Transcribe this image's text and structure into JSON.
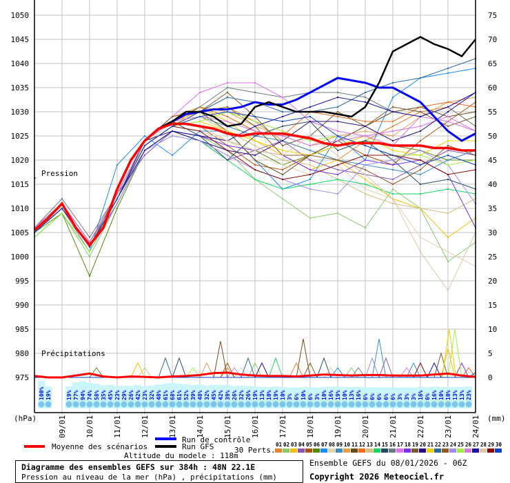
{
  "chart_data": {
    "type": "line",
    "title": "Diagramme des ensembles GEFS sur 384h : 48N 22.1E",
    "subtitle": "Pression au niveau de la mer (hPa) , précipitations (mm)",
    "run_info": "Ensemble GEFS du 08/01/2026 - 06Z",
    "copyright": "Copyright 2026 Meteociel.fr",
    "altitude": "Altitude du modele : 118m",
    "ylabel_left": "(hPa)",
    "ylabel_right": "(mm)",
    "pressure_label": "Pression",
    "precip_label": "Précipitations",
    "ylim_pressure": [
      975,
      1050
    ],
    "ylim_precip": [
      0,
      75
    ],
    "left_ticks": [
      "1050",
      "1045",
      "1040",
      "1035",
      "1030",
      "1025",
      "1020",
      "1015",
      "1010",
      "1005",
      "1000",
      "995",
      "990",
      "985",
      "980",
      "975"
    ],
    "right_ticks": [
      "75",
      "70",
      "65",
      "60",
      "55",
      "50",
      "45",
      "40",
      "35",
      "30",
      "25",
      "20",
      "15",
      "10",
      "5",
      "0"
    ],
    "x_range_hours": [
      0,
      384
    ],
    "date_labels": [
      "09/01",
      "10/01",
      "11/01",
      "12/01",
      "13/01",
      "14/01",
      "15/01",
      "16/01",
      "17/01",
      "18/01",
      "19/01",
      "20/01",
      "21/01",
      "22/01",
      "23/01",
      "24/01"
    ],
    "legend": {
      "mean": {
        "label": "Moyenne des scénarios",
        "color": "#ff0000"
      },
      "control": {
        "label": "Run de contrôle",
        "color": "#0000ff"
      },
      "gfs": {
        "label": "Run GFS",
        "color": "#000000"
      },
      "perts_label": "30 Perts."
    },
    "mean_12h": [
      1005.5,
      1008,
      1011,
      1006,
      1002.4,
      1006,
      1014,
      1020,
      1024,
      1026.5,
      1027.5,
      1027.5,
      1027,
      1026.5,
      1025.5,
      1025,
      1025.5,
      1025.5,
      1025.5,
      1025,
      1024.5,
      1023.5,
      1023,
      1023.5,
      1023.5,
      1023.5,
      1023,
      1023,
      1023,
      1022.5,
      1022.5,
      1022,
      1022
    ],
    "control_12h": [
      1005.5,
      1008,
      1011,
      1006,
      1002.4,
      1006,
      1014,
      1020,
      1024,
      1026.5,
      1028,
      1029.5,
      1030,
      1030.5,
      1030.5,
      1031,
      1032,
      1031.5,
      1031.5,
      1032.5,
      1034,
      1035.5,
      1037,
      1036.5,
      1036,
      1035,
      1035,
      1033.5,
      1032,
      1029,
      1026,
      1024,
      1025.5
    ],
    "gfs_12h": [
      1005.5,
      1008,
      1011,
      1006,
      1002.4,
      1006,
      1014,
      1020,
      1024,
      1026.5,
      1028,
      1030,
      1030,
      1029,
      1027,
      1027.5,
      1031,
      1032,
      1031,
      1030,
      1030,
      1030,
      1029.5,
      1029,
      1031,
      1036,
      1042.5,
      1044,
      1045.5,
      1044,
      1043,
      1041.5,
      1045
    ],
    "mean_precip_12h": [
      0.3,
      0,
      0,
      0.4,
      0.8,
      0.2,
      0,
      0.2,
      0.1,
      0,
      0.2,
      0.3,
      0.5,
      0.9,
      1.0,
      0.6,
      0.4,
      0.3,
      0.3,
      0.2,
      0.4,
      0.6,
      0.5,
      0.4,
      0.5,
      0.5,
      0.4,
      0.4,
      0.4,
      0.6,
      0.8,
      0.4,
      0.1
    ],
    "members": [
      {
        "id": "01",
        "color": "#e8812f",
        "p": [
          1005,
          1010,
          1002,
          1013,
          1024,
          1028,
          1030,
          1031,
          1028,
          1024,
          1022,
          1020,
          1024,
          1027,
          1030,
          1031,
          1027
        ],
        "rain": [
          [
            168,
            2
          ],
          [
            228,
            3
          ]
        ]
      },
      {
        "id": "02",
        "color": "#8bc96c",
        "p": [
          1004,
          1009,
          1000,
          1011,
          1022,
          1026,
          1025,
          1022,
          1016,
          1012,
          1008,
          1009,
          1006,
          1014,
          1010,
          999,
          1003
        ],
        "rain": [
          [
            192,
            3
          ],
          [
            276,
            2
          ]
        ]
      },
      {
        "id": "03",
        "color": "#f0c000",
        "p": [
          1005,
          1010,
          1001,
          1012,
          1023,
          1027,
          1031,
          1028,
          1024,
          1021,
          1018,
          1020,
          1016,
          1012,
          1010,
          1004,
          1008
        ],
        "rain": [
          [
            90,
            3
          ],
          [
            360,
            6
          ]
        ]
      },
      {
        "id": "04",
        "color": "#8c55b0",
        "p": [
          1006,
          1011,
          1003,
          1013,
          1021,
          1026,
          1024,
          1020,
          1022,
          1024,
          1020,
          1018,
          1017,
          1016,
          1019,
          1022,
          1021
        ],
        "rain": [
          [
            306,
            4
          ]
        ]
      },
      {
        "id": "05",
        "color": "#b0520e",
        "p": [
          1005,
          1010,
          1002,
          1013,
          1024,
          1028,
          1027,
          1023,
          1019,
          1018,
          1021,
          1024,
          1021,
          1019,
          1024,
          1028,
          1032
        ],
        "rain": [
          [
            168,
            3
          ]
        ]
      },
      {
        "id": "06",
        "color": "#5a8a0a",
        "p": [
          1005,
          1009,
          996,
          1010,
          1022,
          1026,
          1025,
          1024,
          1022,
          1019,
          1021,
          1023,
          1024,
          1023,
          1022,
          1020,
          1020
        ],
        "rain": [
          [
            54,
            2
          ]
        ]
      },
      {
        "id": "07",
        "color": "#1a8cff",
        "p": [
          1004,
          1009,
          1001,
          1019,
          1025,
          1021,
          1026,
          1026,
          1020,
          1014,
          1016,
          1025,
          1020,
          1033,
          1037,
          1038,
          1039
        ],
        "rain": [
          [
            264,
            2
          ]
        ]
      },
      {
        "id": "08",
        "color": "#e0d3b0",
        "p": [
          1005,
          1010,
          1002,
          1012,
          1023,
          1028,
          1027,
          1024,
          1021,
          1019,
          1017,
          1019,
          1014,
          1012,
          1004,
          1001,
          998
        ],
        "rain": [
          [
            180,
            2
          ]
        ]
      },
      {
        "id": "09",
        "color": "#3a8ec0",
        "p": [
          1005,
          1011,
          1003,
          1012,
          1023,
          1027,
          1029,
          1027,
          1025,
          1024,
          1022,
          1020,
          1019,
          1018,
          1017,
          1020,
          1022
        ],
        "rain": [
          [
            300,
            8
          ],
          [
            330,
            3
          ]
        ]
      },
      {
        "id": "10",
        "color": "#e8a050",
        "p": [
          1006,
          1011,
          1003,
          1013,
          1024,
          1029,
          1031,
          1030,
          1027,
          1025,
          1023,
          1025,
          1026,
          1025,
          1029,
          1032,
          1033
        ],
        "rain": [
          [
            150,
            3
          ]
        ]
      },
      {
        "id": "11",
        "color": "#6a4e1a",
        "p": [
          1005,
          1010,
          1002,
          1012,
          1023,
          1027,
          1030,
          1026,
          1020,
          1017,
          1021,
          1024,
          1027,
          1030,
          1031,
          1029,
          1030
        ],
        "rain": [
          [
            162,
            7.5
          ],
          [
            234,
            8
          ]
        ]
      },
      {
        "id": "12",
        "color": "#f26a1a",
        "p": [
          1005,
          1010,
          1002,
          1012,
          1024,
          1028,
          1031,
          1029,
          1026,
          1025,
          1030,
          1029,
          1028,
          1028,
          1031,
          1032,
          1031
        ],
        "rain": [
          [
            378,
            2
          ]
        ]
      },
      {
        "id": "13",
        "color": "#d4c080",
        "p": [
          1005,
          1010,
          1002,
          1012,
          1023,
          1027,
          1029,
          1026,
          1023,
          1020,
          1019,
          1016,
          1013,
          1011,
          1010,
          1009,
          1012
        ],
        "rain": [
          [
            96,
            2
          ]
        ]
      },
      {
        "id": "14",
        "color": "#10d860",
        "p": [
          1004,
          1009,
          1001,
          1011,
          1022,
          1026,
          1024,
          1020,
          1016,
          1014,
          1015,
          1016,
          1015,
          1013,
          1013,
          1014,
          1013
        ],
        "rain": [
          [
            210,
            4
          ]
        ]
      },
      {
        "id": "15",
        "color": "#234a60",
        "p": [
          1005,
          1011,
          1003,
          1013,
          1024,
          1028,
          1025,
          1020,
          1025,
          1027,
          1028,
          1022,
          1024,
          1020,
          1015,
          1016,
          1014
        ],
        "rain": [
          [
            126,
            4
          ],
          [
            252,
            4
          ]
        ]
      },
      {
        "id": "16",
        "color": "#6a7880",
        "p": [
          1006,
          1012,
          1004,
          1013,
          1024,
          1028,
          1031,
          1035,
          1034,
          1033,
          1034,
          1034,
          1033,
          1030,
          1029,
          1031,
          1027
        ],
        "rain": [
          [
            282,
            2
          ]
        ]
      },
      {
        "id": "17",
        "color": "#e070f0",
        "p": [
          1005,
          1011,
          1003,
          1013,
          1024,
          1029,
          1034,
          1036,
          1036,
          1033,
          1028,
          1026,
          1025,
          1026,
          1027,
          1029,
          1026
        ],
        "rain": [
          [
            324,
            2
          ]
        ]
      },
      {
        "id": "18",
        "color": "#7a30f0",
        "p": [
          1005,
          1010,
          1002,
          1011,
          1022,
          1026,
          1025,
          1023,
          1022,
          1021,
          1018,
          1017,
          1020,
          1019,
          1020,
          1017,
          1006
        ],
        "rain": [
          [
            372,
            3
          ]
        ]
      },
      {
        "id": "19",
        "color": "#7a5a30",
        "p": [
          1005,
          1010,
          1002,
          1012,
          1023,
          1027,
          1030,
          1034,
          1029,
          1023,
          1025,
          1030,
          1027,
          1031,
          1030,
          1027,
          1029
        ],
        "rain": [
          [
            354,
            5
          ]
        ]
      },
      {
        "id": "20",
        "color": "#2a0a80",
        "p": [
          1005,
          1010,
          1002,
          1012,
          1024,
          1026,
          1024,
          1022,
          1021,
          1024,
          1028,
          1028,
          1027,
          1024,
          1026,
          1030,
          1034
        ],
        "rain": [
          [
            198,
            3
          ]
        ]
      },
      {
        "id": "21",
        "color": "#f0d000",
        "p": [
          1005,
          1010,
          1002,
          1012,
          1023,
          1027,
          1028,
          1026,
          1024,
          1022,
          1021,
          1023,
          1025,
          1022,
          1021,
          1024,
          1024
        ],
        "rain": [
          [
            361,
            10
          ]
        ]
      },
      {
        "id": "22",
        "color": "#2a6aa0",
        "p": [
          1005,
          1010,
          1002,
          1012,
          1023,
          1027,
          1030,
          1033,
          1032,
          1030,
          1030,
          1031,
          1034,
          1036,
          1037,
          1039,
          1041
        ],
        "rain": [
          [
            114,
            4
          ],
          [
            186,
            4
          ]
        ]
      },
      {
        "id": "23",
        "color": "#8e5a20",
        "p": [
          1006,
          1011,
          1003,
          1013,
          1024,
          1029,
          1030,
          1031,
          1027,
          1021,
          1021,
          1020,
          1018,
          1015,
          1018,
          1023,
          1021
        ],
        "rain": [
          [
            240,
            3
          ]
        ]
      },
      {
        "id": "24",
        "color": "#a08ce8",
        "p": [
          1005,
          1010,
          1001,
          1011,
          1022,
          1025,
          1024,
          1021,
          1018,
          1016,
          1014,
          1013,
          1019,
          1020,
          1022,
          1019,
          1011
        ],
        "rain": [
          [
            294,
            4
          ]
        ]
      },
      {
        "id": "25",
        "color": "#a0f040",
        "p": [
          1004,
          1009,
          1001,
          1012,
          1023,
          1027,
          1028,
          1030,
          1028,
          1026,
          1024,
          1025,
          1023,
          1021,
          1021,
          1019,
          1020
        ],
        "rain": [
          [
            366,
            10
          ],
          [
            138,
            2
          ]
        ]
      },
      {
        "id": "26",
        "color": "#d878d8",
        "p": [
          1006,
          1011,
          1003,
          1013,
          1024,
          1028,
          1029,
          1028,
          1026,
          1025,
          1023,
          1024,
          1025,
          1023,
          1029,
          1028,
          1026
        ],
        "rain": [
          [
            174,
            2
          ]
        ]
      },
      {
        "id": "27",
        "color": "#2010a0",
        "p": [
          1005,
          1010,
          1002,
          1012,
          1022,
          1026,
          1025,
          1024,
          1027,
          1029,
          1031,
          1033,
          1032,
          1030,
          1029,
          1031,
          1034
        ],
        "rain": [
          [
            348,
            3
          ]
        ]
      },
      {
        "id": "28",
        "color": "#dcc8a8",
        "p": [
          1005,
          1010,
          1002,
          1012,
          1023,
          1027,
          1026,
          1024,
          1022,
          1021,
          1025,
          1021,
          1017,
          1012,
          1001,
          993,
          1005
        ],
        "rain": [
          [
            258,
            2
          ]
        ]
      },
      {
        "id": "29",
        "color": "#880808",
        "p": [
          1005,
          1010,
          1002,
          1012,
          1023,
          1027,
          1026,
          1022,
          1018,
          1016,
          1017,
          1019,
          1021,
          1021,
          1020,
          1017,
          1018
        ],
        "rain": [
          [
            336,
            3
          ]
        ]
      },
      {
        "id": "30",
        "color": "#0a40c0",
        "p": [
          1005,
          1010,
          1002,
          1012,
          1023,
          1027,
          1029,
          1030,
          1029,
          1028,
          1029,
          1025,
          1023,
          1021,
          1019,
          1021,
          1019
        ],
        "rain": [
          [
            384,
            1
          ]
        ]
      }
    ],
    "snow_probability_pct": [
      "100%",
      "19%",
      "",
      "",
      "19%",
      "77%",
      "94%",
      "74%",
      "58%",
      "35%",
      "45%",
      "23%",
      "29%",
      "26%",
      "42%",
      "23%",
      "32%",
      "48%",
      "61%",
      "68%",
      "61%",
      "52%",
      "39%",
      "48%",
      "32%",
      "45%",
      "42%",
      "39%",
      "26%",
      "32%",
      "26%",
      "19%",
      "13%",
      "10%",
      "19%",
      "10%",
      "3%",
      "6%",
      "10%",
      "6%",
      "3%",
      "10%",
      "16%",
      "19%",
      "10%",
      "13%",
      "16%",
      "6%",
      "6%",
      "6%",
      "6%",
      "6%",
      "3%",
      "3%",
      "3%",
      "16%",
      "6%",
      "16%",
      "10%",
      "10%",
      "13%",
      "13%",
      "23%"
    ]
  }
}
